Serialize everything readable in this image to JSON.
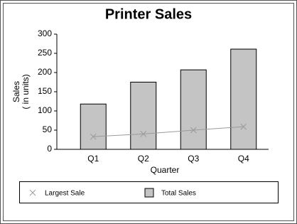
{
  "chart_data": {
    "type": "bar",
    "title": "Printer Sales",
    "x_label": "Quarter",
    "y_label": [
      "Sales",
      "( in units)"
    ],
    "categories": [
      "Q1",
      "Q2",
      "Q3",
      "Q4"
    ],
    "series": [
      {
        "name": "Largest Sale",
        "type": "line",
        "marker": "x",
        "color": "#9a9a9a",
        "values": [
          33,
          40,
          50,
          59
        ]
      },
      {
        "name": "Total Sales",
        "type": "bar",
        "color": "#c4c4c4",
        "values": [
          118,
          175,
          207,
          261
        ]
      }
    ],
    "ylim": [
      0,
      300
    ],
    "yticks": [
      0,
      50,
      100,
      150,
      200,
      250,
      300
    ],
    "grid": false
  }
}
